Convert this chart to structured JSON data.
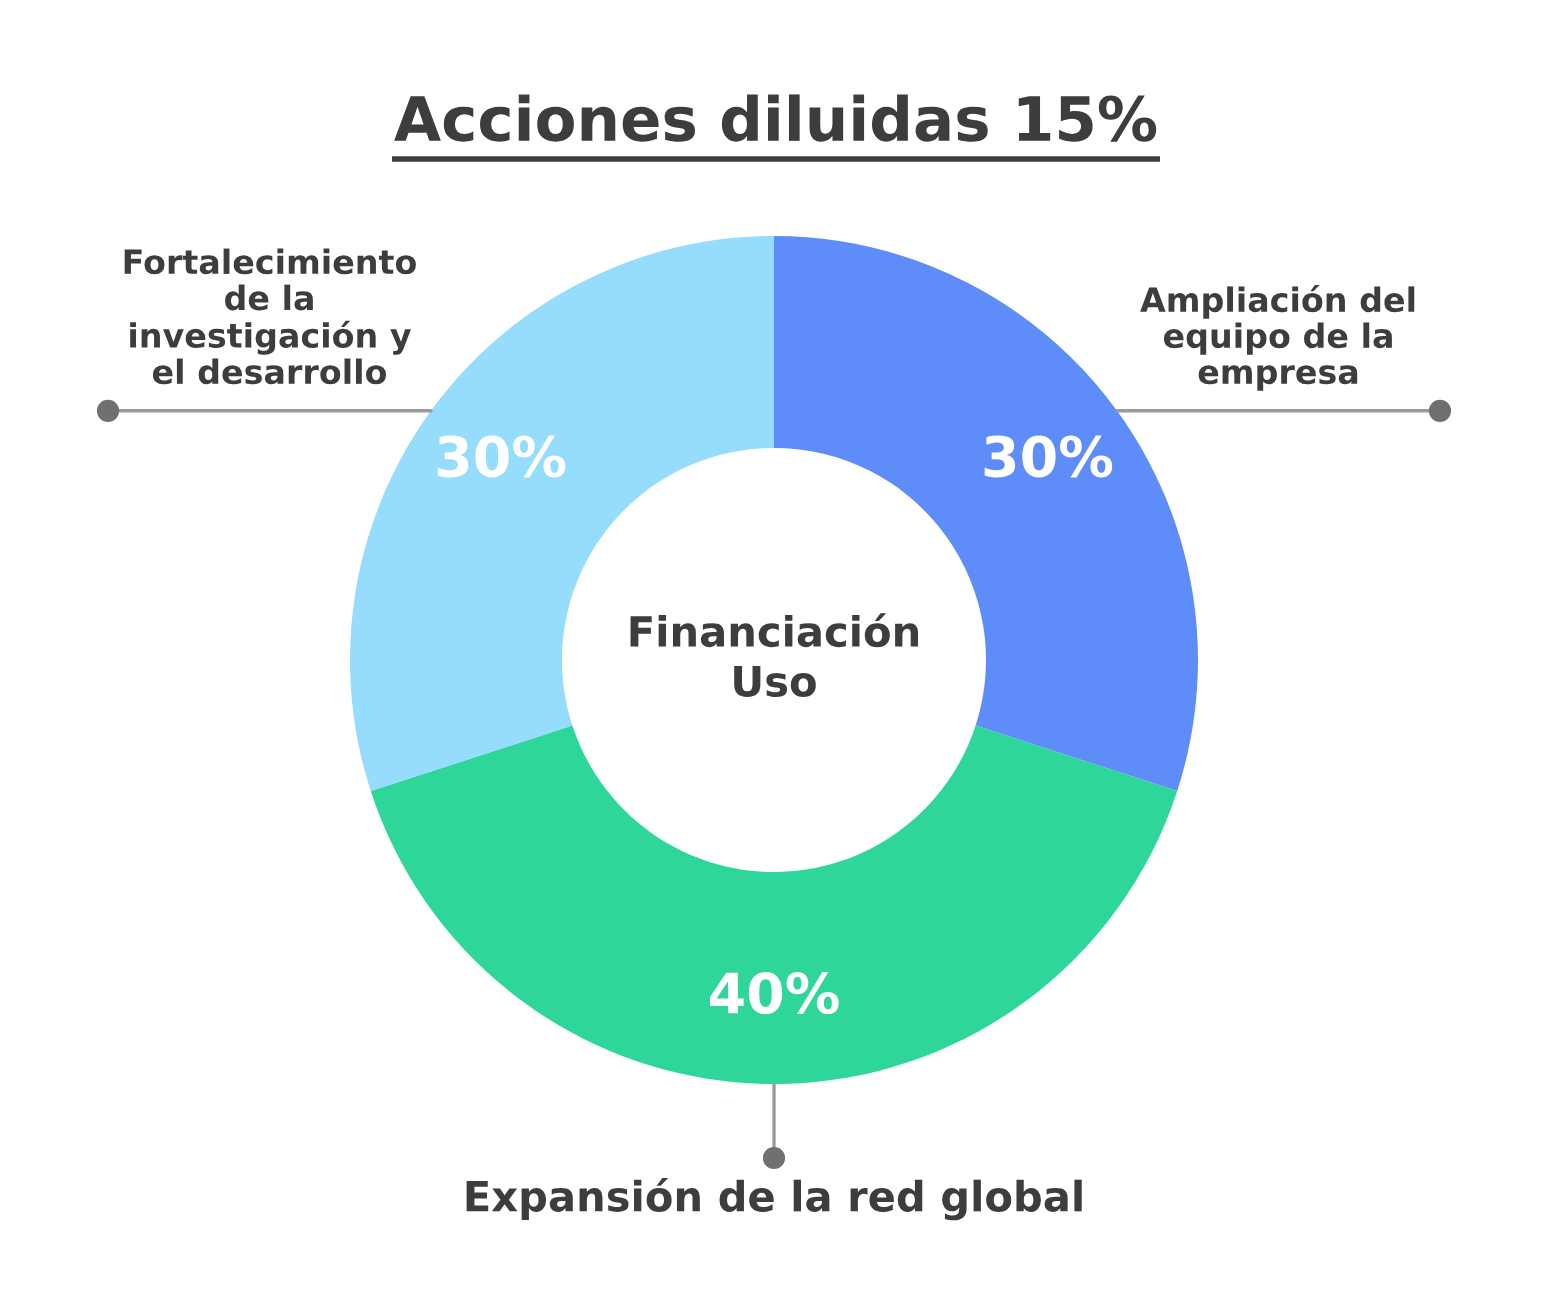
{
  "chart_data": {
    "type": "donut",
    "title": "Acciones diluidas 15%",
    "categories": [
      "Ampliación del\nequipo de la\nempresa",
      "Expansión de la red global",
      "Fortalecimiento\nde la\ninvestigación y\nel desarrollo"
    ],
    "values": [
      30,
      40,
      30
    ],
    "colors": [
      "#5e8cf9",
      "#2ed69a",
      "#95dcfd"
    ],
    "value_labels": [
      "30%",
      "40%",
      "30%"
    ],
    "annotations": [
      "Financiación\nUso"
    ]
  }
}
